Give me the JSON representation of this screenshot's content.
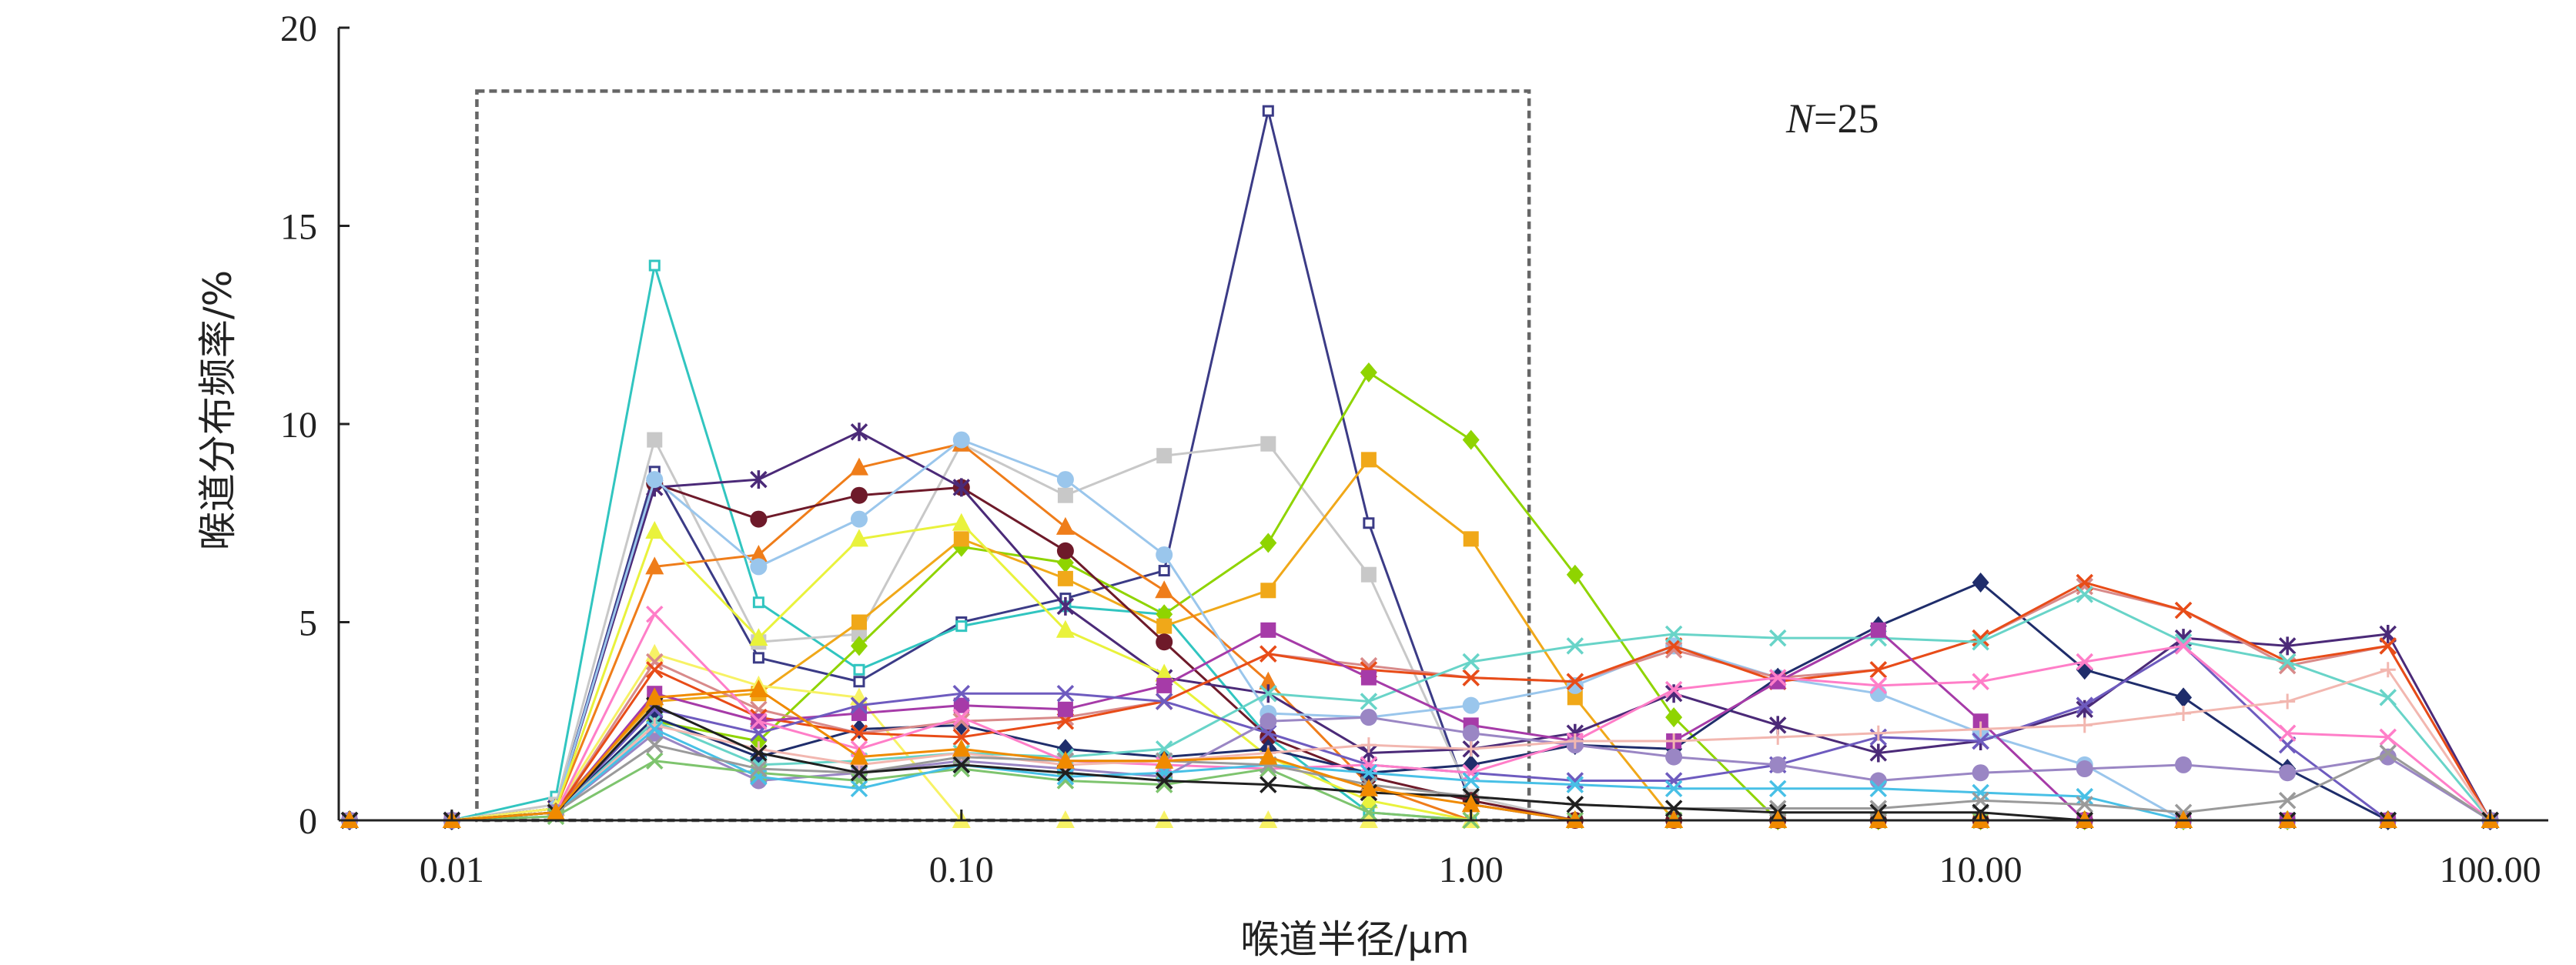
{
  "chart_data": {
    "type": "line",
    "xscale": "log",
    "xlabel": "喉道半径/μm",
    "ylabel": "喉道分布频率/%",
    "xlim": [
      0.006,
      130
    ],
    "ylim": [
      0,
      20
    ],
    "xticks": [
      {
        "value": 0.01,
        "label": "0.01"
      },
      {
        "value": 0.1,
        "label": "0.10"
      },
      {
        "value": 1,
        "label": "1.00"
      },
      {
        "value": 10,
        "label": "10.00"
      },
      {
        "value": 100,
        "label": "100.00"
      }
    ],
    "yticks": [
      {
        "value": 0,
        "label": "0"
      },
      {
        "value": 5,
        "label": "5"
      },
      {
        "value": 10,
        "label": "10"
      },
      {
        "value": 15,
        "label": "15"
      },
      {
        "value": 20,
        "label": "20"
      }
    ],
    "annotation": {
      "var": "N",
      "rest": "=25"
    },
    "highlight_box": {
      "x": [
        0.0112,
        1.3
      ],
      "y": [
        0,
        18.4
      ]
    },
    "x": [
      0.0063,
      0.01,
      0.016,
      0.025,
      0.04,
      0.063,
      0.1,
      0.16,
      0.25,
      0.4,
      0.63,
      1.0,
      1.6,
      2.5,
      4.0,
      6.3,
      10.0,
      16.0,
      25.0,
      40.0,
      63.0,
      100.0
    ],
    "series": [
      {
        "color": "#3b3b86",
        "marker": "square-open",
        "values": [
          0,
          0,
          0.3,
          8.8,
          4.1,
          3.5,
          5.0,
          5.6,
          6.3,
          17.9,
          7.5,
          0.4,
          0,
          0,
          0,
          0,
          0,
          0,
          0,
          0,
          0,
          0
        ]
      },
      {
        "color": "#31c5c0",
        "marker": "square-open",
        "values": [
          0,
          0,
          0.6,
          14.0,
          5.5,
          3.8,
          4.9,
          5.4,
          5.2,
          2.1,
          0.2,
          0,
          0,
          0,
          0,
          0,
          0,
          0,
          0,
          0,
          0,
          0
        ]
      },
      {
        "color": "#c8c8c8",
        "marker": "square",
        "values": [
          0,
          0,
          0.4,
          9.6,
          4.5,
          4.7,
          9.5,
          8.2,
          9.2,
          9.5,
          6.2,
          0.6,
          0,
          0,
          0,
          0,
          0,
          0,
          0,
          0,
          0,
          0
        ]
      },
      {
        "color": "#8fd400",
        "marker": "diamond",
        "values": [
          0,
          0,
          0.2,
          2.5,
          2.0,
          4.4,
          6.9,
          6.5,
          5.2,
          7.0,
          11.3,
          9.6,
          6.2,
          2.6,
          0,
          0,
          0,
          0,
          0,
          0,
          0,
          0
        ]
      },
      {
        "color": "#f0a819",
        "marker": "square",
        "values": [
          0,
          0,
          0.3,
          3.0,
          3.2,
          5.0,
          7.1,
          6.1,
          4.9,
          5.8,
          9.1,
          7.1,
          3.1,
          0,
          0,
          0,
          0,
          0,
          0,
          0,
          0,
          0
        ]
      },
      {
        "color": "#ef7d1a",
        "marker": "triangle",
        "values": [
          0,
          0,
          0.3,
          6.4,
          6.7,
          8.9,
          9.5,
          7.4,
          5.8,
          3.5,
          0.9,
          0,
          0,
          0,
          0,
          0,
          0,
          0,
          0,
          0,
          0,
          0
        ]
      },
      {
        "color": "#6e1a2a",
        "marker": "circle",
        "values": [
          0,
          0,
          0.3,
          8.5,
          7.6,
          8.2,
          8.4,
          6.8,
          4.5,
          2.1,
          1.1,
          0.5,
          0,
          0,
          0,
          0,
          0,
          0,
          0,
          0,
          0,
          0
        ]
      },
      {
        "color": "#4b2a78",
        "marker": "asterisk",
        "values": [
          0,
          0,
          0.3,
          8.4,
          8.6,
          9.8,
          8.4,
          5.4,
          3.6,
          3.2,
          1.7,
          1.8,
          2.2,
          3.2,
          2.4,
          1.7,
          2.0,
          2.8,
          4.6,
          4.4,
          4.7,
          0
        ]
      },
      {
        "color": "#9ac6ec",
        "marker": "circle",
        "values": [
          0,
          0,
          0.3,
          8.6,
          6.4,
          7.6,
          9.6,
          8.6,
          6.7,
          2.7,
          2.6,
          2.9,
          3.4,
          4.4,
          3.6,
          3.2,
          2.2,
          1.4,
          0,
          0,
          0,
          0
        ]
      },
      {
        "color": "#e9f23c",
        "marker": "triangle",
        "values": [
          0,
          0,
          0.3,
          7.3,
          4.6,
          7.1,
          7.5,
          4.8,
          3.7,
          1.6,
          0.5,
          0,
          0,
          0,
          0,
          0,
          0,
          0,
          0,
          0,
          0,
          0
        ]
      },
      {
        "color": "#f7f265",
        "marker": "triangle",
        "values": [
          0,
          0,
          0.3,
          4.2,
          3.4,
          3.1,
          0,
          0,
          0,
          0,
          0,
          0,
          0,
          0,
          0,
          0,
          0,
          0,
          0,
          0,
          0,
          0
        ]
      },
      {
        "color": "#1f2d6b",
        "marker": "diamond",
        "values": [
          0,
          0,
          0.2,
          2.6,
          1.6,
          2.3,
          2.4,
          1.8,
          1.6,
          1.8,
          1.2,
          1.4,
          1.9,
          1.8,
          3.6,
          4.9,
          6.0,
          3.8,
          3.1,
          1.3,
          0,
          0
        ]
      },
      {
        "color": "#d88a8a",
        "marker": "cross",
        "values": [
          0,
          0,
          0.2,
          4.0,
          2.8,
          2.2,
          2.5,
          2.6,
          3.0,
          4.2,
          3.9,
          3.6,
          3.5,
          4.3,
          3.6,
          3.8,
          4.6,
          5.9,
          5.3,
          3.9,
          4.4,
          0
        ]
      },
      {
        "color": "#e84c18",
        "marker": "cross",
        "values": [
          0,
          0,
          0.2,
          3.8,
          2.6,
          2.2,
          2.1,
          2.5,
          3.0,
          4.2,
          3.8,
          3.6,
          3.5,
          4.4,
          3.5,
          3.8,
          4.6,
          6.0,
          5.3,
          4.0,
          4.4,
          0
        ]
      },
      {
        "color": "#68d4c8",
        "marker": "cross",
        "values": [
          0,
          0,
          0.2,
          2.5,
          1.4,
          1.5,
          1.7,
          1.6,
          1.8,
          3.2,
          3.0,
          4.0,
          4.4,
          4.7,
          4.6,
          4.6,
          4.5,
          5.7,
          4.5,
          4.0,
          3.1,
          0
        ]
      },
      {
        "color": "#a63ba8",
        "marker": "square",
        "values": [
          0,
          0,
          0.2,
          3.2,
          2.5,
          2.7,
          2.9,
          2.8,
          3.4,
          4.8,
          3.6,
          2.4,
          2.0,
          2.0,
          3.5,
          4.8,
          2.5,
          0,
          0,
          0,
          0,
          0
        ]
      },
      {
        "color": "#6e5bbf",
        "marker": "cross",
        "values": [
          0,
          0,
          0.2,
          2.8,
          2.2,
          2.9,
          3.2,
          3.2,
          3.0,
          2.2,
          1.4,
          1.2,
          1.0,
          1.0,
          1.4,
          2.1,
          2.0,
          2.9,
          4.4,
          1.9,
          0,
          0
        ]
      },
      {
        "color": "#ff7ec8",
        "marker": "cross",
        "values": [
          0,
          0,
          0.2,
          5.2,
          2.5,
          1.8,
          2.6,
          1.5,
          1.4,
          1.3,
          1.4,
          1.2,
          2.0,
          3.3,
          3.6,
          3.4,
          3.5,
          4.0,
          4.4,
          2.2,
          2.1,
          0
        ]
      },
      {
        "color": "#9a86c4",
        "marker": "circle",
        "values": [
          0,
          0,
          0.2,
          2.2,
          1.0,
          1.2,
          1.5,
          1.3,
          1.1,
          2.5,
          2.6,
          2.2,
          1.9,
          1.6,
          1.4,
          1.0,
          1.2,
          1.3,
          1.4,
          1.2,
          1.6,
          0
        ]
      },
      {
        "color": "#f2b7b0",
        "marker": "plus",
        "values": [
          0,
          0,
          0.2,
          2.4,
          1.8,
          1.4,
          1.7,
          1.4,
          1.5,
          1.7,
          1.9,
          1.8,
          2.0,
          2.0,
          2.1,
          2.2,
          2.3,
          2.4,
          2.7,
          3.0,
          3.8,
          0
        ]
      },
      {
        "color": "#7ec46e",
        "marker": "cross",
        "values": [
          0,
          0,
          0.1,
          1.5,
          1.2,
          1.0,
          1.3,
          1.0,
          0.9,
          1.3,
          0.2,
          0,
          0,
          0,
          0,
          0,
          0,
          0,
          0,
          0,
          0,
          0
        ]
      },
      {
        "color": "#48c0e6",
        "marker": "cross",
        "values": [
          0,
          0,
          0.2,
          2.3,
          1.1,
          0.8,
          1.4,
          1.1,
          1.2,
          1.4,
          1.2,
          1.0,
          0.9,
          0.8,
          0.8,
          0.8,
          0.7,
          0.6,
          0,
          0,
          0,
          0
        ]
      },
      {
        "color": "#9a9a9a",
        "marker": "cross",
        "values": [
          0,
          0,
          0.2,
          1.9,
          1.3,
          1.2,
          1.6,
          1.5,
          1.5,
          1.4,
          0.9,
          0.6,
          0.4,
          0.3,
          0.3,
          0.3,
          0.5,
          0.4,
          0.2,
          0.5,
          1.7,
          0
        ]
      },
      {
        "color": "#202020",
        "marker": "cross",
        "values": [
          0,
          0,
          0.2,
          2.9,
          1.7,
          1.2,
          1.4,
          1.2,
          1.0,
          0.9,
          0.7,
          0.6,
          0.4,
          0.3,
          0.2,
          0.2,
          0.2,
          0,
          0,
          0,
          0,
          0
        ]
      },
      {
        "color": "#f08a00",
        "marker": "triangle",
        "values": [
          0,
          0,
          0.2,
          3.1,
          3.3,
          1.6,
          1.8,
          1.5,
          1.5,
          1.6,
          0.8,
          0.4,
          0,
          0,
          0,
          0,
          0,
          0,
          0,
          0,
          0,
          0
        ]
      }
    ]
  }
}
